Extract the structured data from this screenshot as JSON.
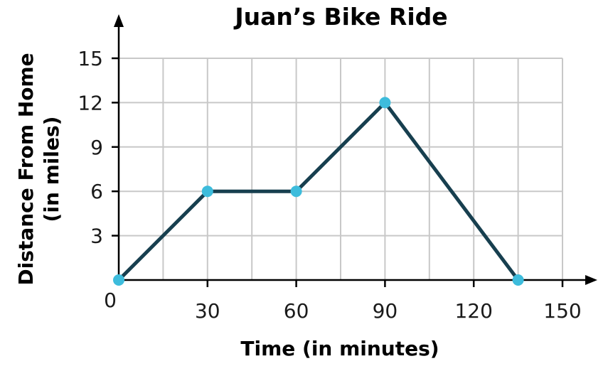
{
  "chart_data": {
    "type": "line",
    "title": "Juan’s Bike Ride",
    "xlabel": "Time (in minutes)",
    "ylabel": [
      "Distance From Home",
      "(in miles)"
    ],
    "xlim": [
      0,
      150
    ],
    "ylim": [
      0,
      15
    ],
    "x_ticks": [
      0,
      30,
      60,
      90,
      120,
      150
    ],
    "x_tick_labels": [
      "0",
      "30",
      "60",
      "90",
      "120",
      "150"
    ],
    "y_ticks": [
      3,
      6,
      9,
      12,
      15
    ],
    "y_tick_labels": [
      "3",
      "6",
      "9",
      "12",
      "15"
    ],
    "x_grid_step": 15,
    "y_grid_step": 3,
    "grid": true,
    "series": [
      {
        "points": [
          [
            0,
            0
          ],
          [
            30,
            6
          ],
          [
            60,
            6
          ],
          [
            90,
            12
          ],
          [
            135,
            0
          ]
        ]
      }
    ],
    "colors": {
      "line": "#173f4f",
      "marker": "#3dbcdc",
      "grid": "#c8c8c8",
      "axis": "#000000"
    }
  }
}
